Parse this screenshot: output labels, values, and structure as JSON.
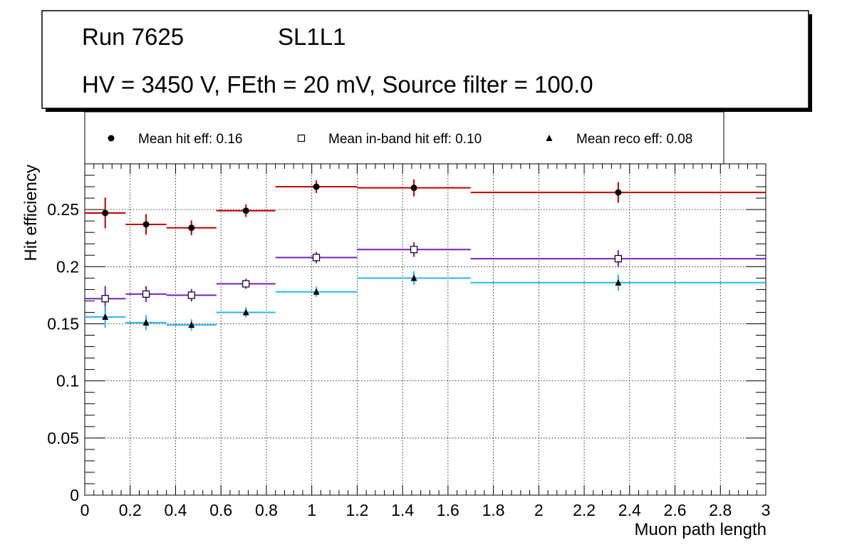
{
  "title_lines": {
    "run": "Run 7625",
    "layer": "SL1L1",
    "settings": "HV = 3450 V, FEth = 20 mV, Source filter = 100.0"
  },
  "chart_data": {
    "type": "scatter",
    "xlabel": "Muon path length",
    "ylabel": "Hit efficiency",
    "xlim": [
      0,
      3
    ],
    "ylim": [
      0,
      0.29
    ],
    "x_ticks": [
      0,
      0.2,
      0.4,
      0.6,
      0.8,
      1,
      1.2,
      1.4,
      1.6,
      1.8,
      2,
      2.2,
      2.4,
      2.6,
      2.8,
      3
    ],
    "x_tick_labels": [
      "0",
      "0.2",
      "0.4",
      "0.6",
      "0.8",
      "1",
      "1.2",
      "1.4",
      "1.6",
      "1.8",
      "2",
      "2.2",
      "2.4",
      "2.6",
      "2.8",
      "3"
    ],
    "y_ticks": [
      0,
      0.05,
      0.1,
      0.15,
      0.2,
      0.25
    ],
    "y_tick_labels": [
      "0",
      "0.05",
      "0.1",
      "0.15",
      "0.2",
      "0.25"
    ],
    "grid": true,
    "bins": [
      [
        0,
        0.18
      ],
      [
        0.18,
        0.36
      ],
      [
        0.36,
        0.58
      ],
      [
        0.58,
        0.84
      ],
      [
        0.84,
        1.2
      ],
      [
        1.2,
        1.7
      ],
      [
        1.7,
        3.0
      ]
    ],
    "legend_placement": "top",
    "series": [
      {
        "name": "Mean hit  eff: 0.16",
        "marker": "circle",
        "color": "#c00000",
        "x": [
          0.09,
          0.27,
          0.47,
          0.71,
          1.02,
          1.45,
          2.35
        ],
        "y": [
          0.247,
          0.237,
          0.234,
          0.249,
          0.27,
          0.269,
          0.265
        ],
        "yerr": [
          0.0135,
          0.009,
          0.0065,
          0.0055,
          0.0055,
          0.0075,
          0.009
        ]
      },
      {
        "name": "Mean in-band hit eff: 0.10",
        "marker": "open-square",
        "color": "#7a1fc2",
        "x": [
          0.09,
          0.27,
          0.47,
          0.71,
          1.02,
          1.45,
          2.35
        ],
        "y": [
          0.172,
          0.176,
          0.175,
          0.185,
          0.208,
          0.215,
          0.207
        ],
        "yerr": [
          0.011,
          0.007,
          0.0055,
          0.0045,
          0.005,
          0.0065,
          0.0075
        ]
      },
      {
        "name": "Mean reco eff: 0.08",
        "marker": "triangle",
        "color": "#29b6e8",
        "x": [
          0.09,
          0.27,
          0.47,
          0.71,
          1.02,
          1.45,
          2.35
        ],
        "y": [
          0.156,
          0.151,
          0.149,
          0.16,
          0.178,
          0.19,
          0.186
        ],
        "yerr": [
          0.0095,
          0.0065,
          0.005,
          0.0045,
          0.0045,
          0.006,
          0.007
        ]
      }
    ]
  }
}
